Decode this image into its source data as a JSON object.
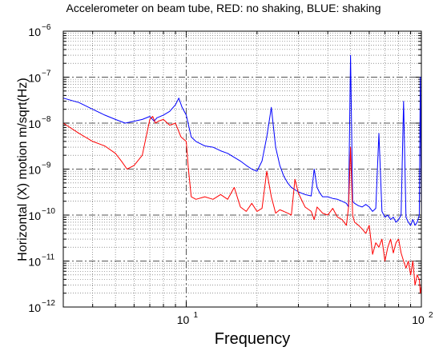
{
  "chart_data": {
    "type": "line",
    "title": "Accelerometer on beam tube, RED: no shaking, BLUE: shaking",
    "xlabel": "Frequency",
    "ylabel": "Horizontal (X)  motion m/sqrt(Hz)",
    "xscale": "log",
    "yscale": "log",
    "xlim": [
      3,
      100
    ],
    "ylim": [
      1e-12,
      1e-06
    ],
    "grid": true,
    "x_ticks": [
      {
        "value": 10,
        "base": "10",
        "exp": "1"
      },
      {
        "value": 100,
        "base": "10",
        "exp": "2"
      }
    ],
    "y_ticks": [
      {
        "value": 1e-12,
        "base": "10",
        "exp": "−12"
      },
      {
        "value": 1e-11,
        "base": "10",
        "exp": "−11"
      },
      {
        "value": 1e-10,
        "base": "10",
        "exp": "−10"
      },
      {
        "value": 1e-09,
        "base": "10",
        "exp": "−9"
      },
      {
        "value": 1e-08,
        "base": "10",
        "exp": "−8"
      },
      {
        "value": 1e-07,
        "base": "10",
        "exp": "−7"
      },
      {
        "value": 1e-06,
        "base": "10",
        "exp": "−6"
      }
    ],
    "series": [
      {
        "color": "#0000ff",
        "x": [
          3,
          3.5,
          4,
          4.5,
          5,
          5.5,
          6,
          6.5,
          7,
          7.3,
          7.5,
          8,
          8.5,
          9,
          9.3,
          9.6,
          10,
          10.5,
          11,
          12,
          13,
          14,
          15,
          16,
          17,
          18,
          19,
          20,
          21,
          22,
          23,
          24,
          25,
          26,
          27,
          28,
          30,
          32,
          34,
          35,
          36,
          37,
          38,
          40,
          42,
          44,
          46,
          48,
          49,
          50,
          51,
          52,
          54,
          56,
          58,
          60,
          62,
          64,
          66,
          68,
          70,
          72,
          74,
          76,
          78,
          80,
          82,
          84,
          86,
          88,
          90,
          92,
          94,
          96,
          98,
          99,
          100
        ],
        "y": [
          3.5e-08,
          2.8e-08,
          2e-08,
          1.5e-08,
          1.2e-08,
          1e-08,
          1.1e-08,
          1.2e-08,
          1.4e-08,
          1.1e-08,
          1.3e-08,
          1.5e-08,
          1.8e-08,
          2.5e-08,
          3.5e-08,
          2.2e-08,
          1.5e-08,
          5e-09,
          4e-09,
          3.2e-09,
          3e-09,
          2.5e-09,
          2.2e-09,
          1.8e-09,
          1.5e-09,
          1.2e-09,
          1e-09,
          9e-10,
          1.5e-09,
          5e-09,
          2.2e-08,
          3e-09,
          1.2e-09,
          7e-10,
          5e-10,
          4e-10,
          3.2e-10,
          2.8e-10,
          2.6e-10,
          1e-09,
          4e-10,
          3e-10,
          2.5e-10,
          2.5e-10,
          2.3e-10,
          2.2e-10,
          2e-10,
          1.8e-10,
          1.5e-10,
          3e-07,
          2e-10,
          1.8e-10,
          1.6e-10,
          1.5e-10,
          1.7e-10,
          1.5e-10,
          1.2e-10,
          1.4e-10,
          6e-09,
          1.2e-10,
          9e-11,
          1e-10,
          8e-11,
          9e-11,
          7e-11,
          8e-11,
          1e-10,
          3e-08,
          9e-11,
          7e-11,
          6e-11,
          8e-11,
          6e-11,
          7e-11,
          1e-10,
          1e-07,
          9e-11
        ]
      },
      {
        "color": "#ff0000",
        "x": [
          3,
          3.5,
          4,
          4.5,
          5,
          5.3,
          5.6,
          6,
          6.5,
          7,
          7.2,
          7.4,
          7.6,
          8,
          8.5,
          9,
          9.5,
          10,
          10.2,
          10.5,
          11,
          12,
          13,
          14,
          15,
          16,
          17,
          18,
          19,
          20,
          21,
          22,
          23,
          24,
          25,
          26,
          27,
          28,
          29,
          30,
          32,
          34,
          35,
          36,
          38,
          40,
          42,
          44,
          46,
          48,
          49,
          50,
          51,
          52,
          54,
          56,
          58,
          60,
          62,
          64,
          66,
          68,
          70,
          72,
          74,
          76,
          78,
          80,
          82,
          84,
          86,
          88,
          90,
          92,
          94,
          96,
          98,
          99,
          100
        ],
        "y": [
          1e-08,
          6e-09,
          4e-09,
          3.2e-09,
          2.2e-09,
          1.5e-09,
          1e-09,
          1.2e-09,
          2e-09,
          1.2e-08,
          1.4e-08,
          1e-08,
          1.1e-08,
          1.2e-08,
          9e-09,
          1e-08,
          5e-09,
          4e-09,
          1.1e-09,
          2.5e-10,
          2.2e-10,
          2.5e-10,
          2.2e-10,
          2.8e-10,
          2.2e-10,
          4e-10,
          1.5e-10,
          1.2e-10,
          1.8e-10,
          1.2e-10,
          1.4e-10,
          9e-10,
          2.5e-10,
          1.1e-10,
          1.3e-10,
          1.2e-10,
          1.1e-10,
          1e-10,
          6e-10,
          3e-10,
          1.5e-10,
          1.2e-10,
          8e-11,
          1.5e-10,
          1.1e-10,
          1e-10,
          1.4e-10,
          9e-11,
          8e-11,
          6e-11,
          1.5e-10,
          3e-09,
          1e-10,
          7e-11,
          6e-11,
          5e-11,
          4e-11,
          6e-11,
          1.4e-11,
          2.5e-11,
          2e-11,
          3e-11,
          1e-11,
          2e-11,
          3e-11,
          1.5e-11,
          2.5e-11,
          3e-11,
          1.5e-11,
          1e-11,
          7e-12,
          1e-11,
          5e-12,
          1e-11,
          3e-12,
          5e-12,
          4e-12,
          2e-12,
          3e-12
        ]
      }
    ]
  }
}
